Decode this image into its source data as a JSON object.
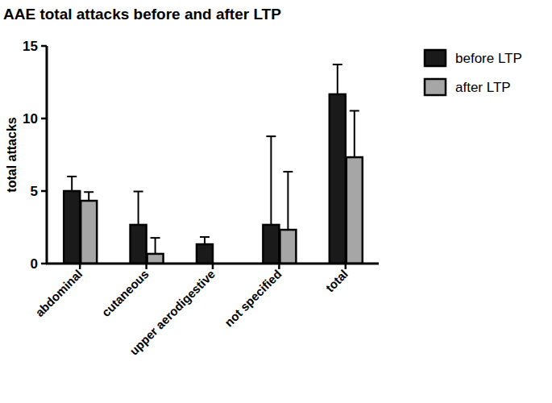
{
  "chart_data": {
    "type": "bar",
    "title": "AAE total attacks before and after LTP",
    "y_label": "total attacks",
    "categories": [
      "abdominal",
      "cutaneous",
      "upper aerodigestive",
      "not specified",
      "total"
    ],
    "series": [
      {
        "name": "before LTP",
        "color": "#1a1a1a",
        "values": [
          5.0,
          2.67,
          1.33,
          2.67,
          11.67
        ],
        "errors": [
          1.0,
          2.3,
          0.5,
          6.1,
          2.05
        ]
      },
      {
        "name": "after LTP",
        "color": "#a6a6a6",
        "values": [
          4.33,
          0.67,
          0,
          2.33,
          7.33
        ],
        "errors": [
          0.6,
          1.1,
          0,
          4.0,
          3.2
        ]
      }
    ],
    "ylim": [
      0,
      15
    ],
    "yticks": [
      0,
      5,
      10,
      15
    ],
    "grid": false,
    "legend": "right"
  }
}
